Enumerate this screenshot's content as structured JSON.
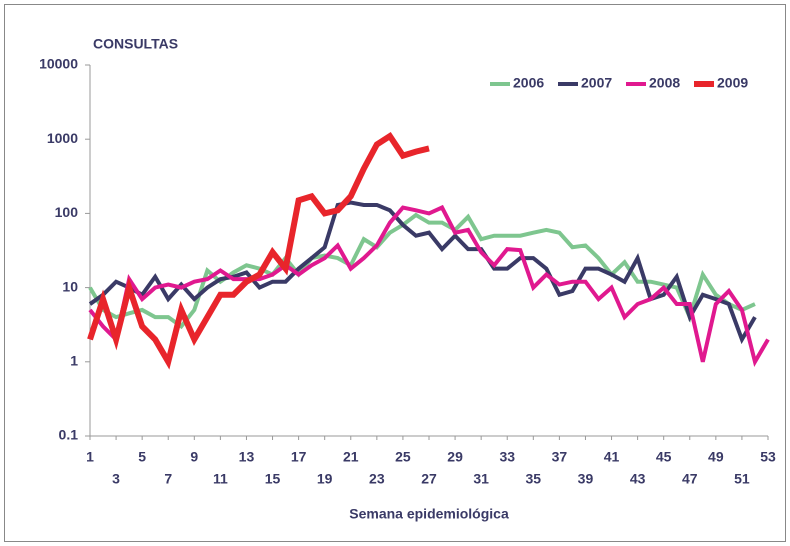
{
  "chart_data": {
    "type": "line",
    "y_axis_title": "CONSULTAS",
    "x_axis_title": "Semana epidemiológica",
    "x": [
      1,
      2,
      3,
      4,
      5,
      6,
      7,
      8,
      9,
      10,
      11,
      12,
      13,
      14,
      15,
      16,
      17,
      18,
      19,
      20,
      21,
      22,
      23,
      24,
      25,
      26,
      27,
      28,
      29,
      30,
      31,
      32,
      33,
      34,
      35,
      36,
      37,
      38,
      39,
      40,
      41,
      42,
      43,
      44,
      45,
      46,
      47,
      48,
      49,
      50,
      51,
      52,
      53
    ],
    "xlim": [
      1,
      53
    ],
    "xticks": [
      1,
      3,
      5,
      7,
      9,
      11,
      13,
      15,
      17,
      19,
      21,
      23,
      25,
      27,
      29,
      31,
      33,
      35,
      37,
      39,
      41,
      43,
      45,
      47,
      49,
      51,
      53
    ],
    "ylim": [
      0.1,
      10000
    ],
    "yticks": [
      0.1,
      1,
      10,
      100,
      1000,
      10000
    ],
    "log_y": true,
    "legend": "top-right",
    "series": [
      {
        "name": "2006",
        "color": "#7ec68f",
        "values": [
          10,
          5,
          4,
          4.5,
          5,
          4,
          4,
          3,
          5,
          17,
          12,
          16,
          20,
          18,
          15,
          25,
          15,
          25,
          27,
          25,
          20,
          45,
          35,
          55,
          70,
          95,
          75,
          75,
          60,
          90,
          45,
          50,
          50,
          50,
          55,
          60,
          55,
          35,
          37,
          25,
          15,
          22,
          12,
          12,
          11,
          10,
          4,
          15,
          8,
          6,
          5,
          6,
          null
        ]
      },
      {
        "name": "2007",
        "color": "#3a3a66",
        "values": [
          6,
          8,
          12,
          10,
          8,
          14,
          7,
          11,
          7,
          10,
          13,
          14,
          16,
          10,
          12,
          12,
          18,
          25,
          35,
          130,
          140,
          130,
          130,
          110,
          70,
          50,
          55,
          33,
          50,
          33,
          33,
          18,
          18,
          25,
          25,
          18,
          8,
          9,
          18,
          18,
          15,
          12,
          25,
          7,
          8,
          14,
          4,
          8,
          7,
          6,
          2,
          4,
          null
        ]
      },
      {
        "name": "2008",
        "color": "#e0198f",
        "values": [
          5,
          3,
          2,
          13,
          7,
          10,
          11,
          10,
          12,
          13,
          17,
          13,
          13,
          13,
          15,
          20,
          15,
          20,
          25,
          37,
          18,
          25,
          37,
          75,
          120,
          110,
          100,
          120,
          55,
          60,
          30,
          20,
          33,
          32,
          10,
          15,
          11,
          12,
          12,
          7,
          10,
          4,
          6,
          7,
          10,
          6,
          6,
          1,
          6,
          9,
          5,
          1,
          2
        ]
      },
      {
        "name": "2009",
        "color": "#e8252b",
        "values": [
          2,
          7,
          2,
          10,
          3,
          2,
          1,
          5,
          2,
          4,
          8,
          8,
          12,
          15,
          30,
          18,
          150,
          170,
          100,
          110,
          170,
          400,
          850,
          1100,
          600,
          680,
          750,
          null,
          null,
          null,
          null,
          null,
          null,
          null,
          null,
          null,
          null,
          null,
          null,
          null,
          null,
          null,
          null,
          null,
          null,
          null,
          null,
          null,
          null,
          null,
          null,
          null,
          null
        ]
      }
    ]
  }
}
